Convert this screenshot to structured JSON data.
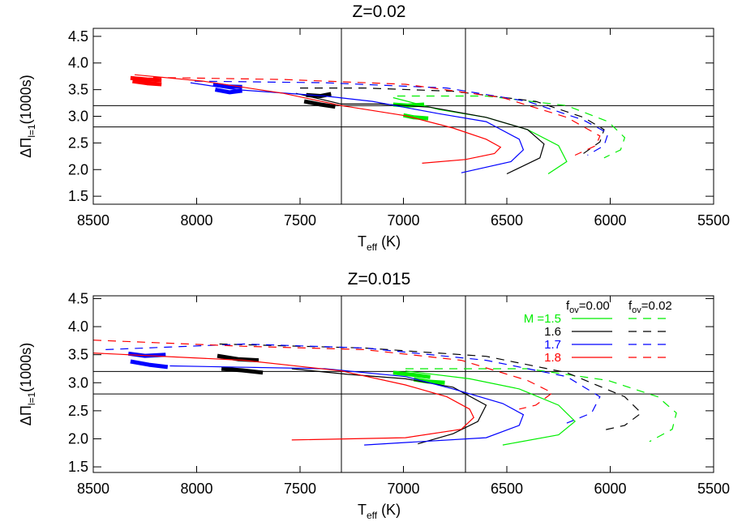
{
  "chart_data": [
    {
      "type": "line",
      "title": "Z=0.02",
      "xlabel": [
        "T",
        "eff",
        " (K)"
      ],
      "ylabel": [
        "ΔΠ",
        "l=1",
        "(1000s)"
      ],
      "xlim": [
        8500,
        5500
      ],
      "xticks": [
        8500,
        8000,
        7500,
        7000,
        6500,
        6000,
        5500
      ],
      "ylim": [
        1.35,
        4.65
      ],
      "yticks": [
        1.5,
        {
          "value": 2,
          "label": "2.0"
        },
        2.5,
        {
          "value": 3,
          "label": "3.0"
        },
        3.5,
        {
          "value": 4,
          "label": "4.0"
        },
        4.5
      ],
      "vlines": [
        7300,
        6700
      ],
      "hlines": [
        3.2,
        2.8
      ],
      "series": [
        {
          "color": "#00ee00",
          "tracks": [
            {
              "dash": false,
              "x": [
                7050,
                6830,
                6600,
                6400,
                6250,
                6210,
                6300
              ],
              "values": [
                3.35,
                3.13,
                2.98,
                2.75,
                2.45,
                2.15,
                1.92
              ]
            },
            {
              "dash": true,
              "x": [
                7030,
                6600,
                6210,
                6010,
                5930,
                5950,
                6030
              ],
              "values": [
                3.38,
                3.38,
                3.2,
                2.9,
                2.6,
                2.37,
                2.22
              ]
            }
          ],
          "thick": [
            {
              "x": [
                7050,
                6980,
                6900
              ],
              "values": [
                3.22,
                3.2,
                3.22
              ]
            },
            {
              "x": [
                7000,
                6950,
                6880
              ],
              "values": [
                3.02,
                2.98,
                2.96
              ]
            }
          ]
        },
        {
          "color": "#000000",
          "tracks": [
            {
              "dash": false,
              "x": [
                7520,
                7300,
                7110,
                6870,
                6600,
                6400,
                6320,
                6340,
                6500
              ],
              "values": [
                3.43,
                3.23,
                3.23,
                3.17,
                2.98,
                2.75,
                2.48,
                2.22,
                1.92
              ]
            },
            {
              "dash": true,
              "x": [
                7500,
                7190,
                6760,
                6360,
                6130,
                6030,
                6050,
                6130
              ],
              "values": [
                3.53,
                3.53,
                3.47,
                3.28,
                2.98,
                2.75,
                2.52,
                2.3
              ]
            }
          ],
          "thick": [
            {
              "x": [
                7470,
                7400,
                7350
              ],
              "values": [
                3.4,
                3.38,
                3.42
              ]
            },
            {
              "x": [
                7480,
                7400,
                7330
              ],
              "values": [
                3.28,
                3.22,
                3.18
              ]
            }
          ]
        },
        {
          "color": "#0000ff",
          "tracks": [
            {
              "dash": false,
              "x": [
                8030,
                7810,
                7380,
                7150,
                6830,
                6600,
                6440,
                6420,
                6480,
                6720
              ],
              "values": [
                3.63,
                3.5,
                3.38,
                3.28,
                3.05,
                2.9,
                2.57,
                2.37,
                2.15,
                1.94
              ]
            },
            {
              "dash": true,
              "x": [
                8010,
                7380,
                6790,
                6400,
                6130,
                6010,
                6030,
                6110
              ],
              "values": [
                3.66,
                3.63,
                3.53,
                3.28,
                2.93,
                2.68,
                2.45,
                2.27
              ]
            }
          ],
          "thick": [
            {
              "x": [
                7920,
                7850,
                7780
              ],
              "values": [
                3.6,
                3.56,
                3.55
              ]
            },
            {
              "x": [
                7910,
                7840,
                7780
              ],
              "values": [
                3.5,
                3.45,
                3.48
              ]
            }
          ]
        },
        {
          "color": "#ff0000",
          "tracks": [
            {
              "dash": false,
              "x": [
                8300,
                7970,
                7580,
                7300,
                6990,
                6760,
                6600,
                6530,
                6560,
                6700,
                6910
              ],
              "values": [
                3.78,
                3.66,
                3.43,
                3.2,
                3.01,
                2.78,
                2.57,
                2.42,
                2.3,
                2.19,
                2.12
              ]
            },
            {
              "dash": true,
              "x": [
                8210,
                7580,
                6990,
                6520,
                6210,
                6050,
                6070,
                6170
              ],
              "values": [
                3.73,
                3.69,
                3.6,
                3.35,
                2.98,
                2.63,
                2.45,
                2.27
              ]
            }
          ],
          "thick": [
            {
              "x": [
                8320,
                8240,
                8170
              ],
              "values": [
                3.72,
                3.69,
                3.68
              ]
            },
            {
              "x": [
                8310,
                8240,
                8170
              ],
              "values": [
                3.66,
                3.62,
                3.6
              ]
            }
          ]
        }
      ]
    },
    {
      "type": "line",
      "title": "Z=0.015",
      "xlabel": [
        "T",
        "eff",
        " (K)"
      ],
      "ylabel": [
        "ΔΠ",
        "l=1",
        "(1000s)"
      ],
      "xlim": [
        8500,
        5500
      ],
      "xticks": [
        8500,
        8000,
        7500,
        7000,
        6500,
        6000,
        5500
      ],
      "ylim": [
        1.4,
        4.55
      ],
      "yticks": [
        1.5,
        {
          "value": 2,
          "label": "2.0"
        },
        2.5,
        {
          "value": 3,
          "label": "3.0"
        },
        3.5,
        {
          "value": 4,
          "label": "4.0"
        },
        4.5
      ],
      "vlines": [
        7300,
        6700
      ],
      "hlines": [
        3.2,
        2.8
      ],
      "legend_headers": [
        [
          "f",
          "ov",
          "=0.00"
        ],
        [
          "f",
          "ov",
          "=0.02"
        ]
      ],
      "series": [
        {
          "name": "M =1.5",
          "color": "#00ee00",
          "tracks": [
            {
              "dash": false,
              "x": [
                6990,
                6680,
                6440,
                6250,
                6170,
                6250,
                6520
              ],
              "values": [
                3.21,
                3.07,
                2.89,
                2.6,
                2.31,
                2.07,
                1.89
              ]
            },
            {
              "dash": true,
              "x": [
                6990,
                6400,
                6010,
                5770,
                5680,
                5700,
                5810
              ],
              "values": [
                3.25,
                3.25,
                3.04,
                2.75,
                2.46,
                2.17,
                1.95
              ]
            }
          ],
          "thick": [
            {
              "x": [
                7050,
                6950,
                6870
              ],
              "values": [
                3.18,
                3.14,
                3.1
              ]
            },
            {
              "x": [
                6950,
                6880,
                6800
              ],
              "values": [
                3.06,
                3.02,
                3.0
              ]
            }
          ]
        },
        {
          "name": "1.6",
          "color": "#000000",
          "tracks": [
            {
              "dash": false,
              "x": [
                7540,
                7270,
                6990,
                6760,
                6600,
                6640,
                6760,
                6930
              ],
              "values": [
                3.25,
                3.15,
                3.07,
                2.92,
                2.6,
                2.31,
                2.09,
                1.91
              ]
            },
            {
              "dash": true,
              "x": [
                7890,
                7190,
                6600,
                6210,
                5930,
                5850,
                5930,
                6050
              ],
              "values": [
                3.69,
                3.62,
                3.47,
                3.18,
                2.75,
                2.46,
                2.24,
                2.14
              ]
            }
          ],
          "thick": [
            {
              "x": [
                7900,
                7800,
                7700
              ],
              "values": [
                3.48,
                3.42,
                3.4
              ]
            },
            {
              "x": [
                7880,
                7780,
                7680
              ],
              "values": [
                3.25,
                3.22,
                3.18
              ]
            }
          ]
        },
        {
          "name": "1.7",
          "color": "#0000ff",
          "tracks": [
            {
              "dash": false,
              "x": [
                8130,
                7380,
                6990,
                6760,
                6520,
                6420,
                6440,
                6600,
                7190
              ],
              "values": [
                3.3,
                3.25,
                3.11,
                2.89,
                2.63,
                2.43,
                2.24,
                2.02,
                1.89
              ]
            },
            {
              "dash": true,
              "x": [
                8440,
                7770,
                7190,
                6600,
                6210,
                6050,
                6090,
                6210
              ],
              "values": [
                3.59,
                3.69,
                3.62,
                3.4,
                3.11,
                2.75,
                2.46,
                2.28
              ]
            }
          ],
          "thick": [
            {
              "x": [
                8330,
                8250,
                8150
              ],
              "values": [
                3.52,
                3.48,
                3.5
              ]
            },
            {
              "x": [
                8320,
                8230,
                8140
              ],
              "values": [
                3.38,
                3.32,
                3.28
              ]
            }
          ]
        },
        {
          "name": "1.8",
          "color": "#ff0000",
          "tracks": [
            {
              "dash": false,
              "x": [
                8500,
                7770,
                7300,
                6990,
                6790,
                6680,
                6660,
                6720,
                6990,
                7540
              ],
              "values": [
                3.53,
                3.4,
                3.21,
                2.96,
                2.75,
                2.53,
                2.38,
                2.17,
                2.02,
                1.98
              ]
            },
            {
              "dash": true,
              "x": [
                8500,
                7770,
                7190,
                6720,
                6400,
                6280,
                6360,
                6440
              ],
              "values": [
                3.76,
                3.65,
                3.59,
                3.4,
                3.04,
                2.82,
                2.6,
                2.53
              ]
            }
          ],
          "thick": []
        }
      ]
    }
  ]
}
